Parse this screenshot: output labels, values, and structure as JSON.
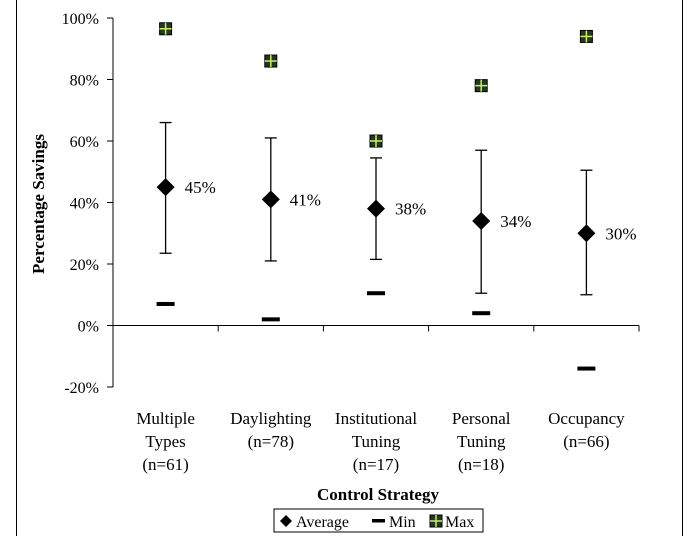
{
  "chart_data": {
    "type": "scatter",
    "xlabel": "Control Strategy",
    "ylabel": "Percentage Savings",
    "ylim": [
      -20,
      100
    ],
    "yticks": [
      -20,
      0,
      20,
      40,
      60,
      80,
      100
    ],
    "grid": false,
    "legend_position": "bottom",
    "categories": [
      {
        "lines": [
          "Multiple",
          "Types",
          "(n=61)"
        ]
      },
      {
        "lines": [
          "Daylighting",
          "(n=78)"
        ]
      },
      {
        "lines": [
          "Institutional",
          "Tuning",
          "(n=17)"
        ]
      },
      {
        "lines": [
          "Personal",
          "Tuning",
          "(n=18)"
        ]
      },
      {
        "lines": [
          "Occupancy",
          "(n=66)"
        ]
      }
    ],
    "series": [
      {
        "name": "Average",
        "marker": "diamond",
        "values": [
          45,
          41,
          38,
          34,
          30
        ],
        "labels": [
          "45%",
          "41%",
          "38%",
          "34%",
          "30%"
        ]
      },
      {
        "name": "Min",
        "marker": "dash",
        "values": [
          7,
          2,
          10.5,
          4,
          -14
        ]
      },
      {
        "name": "Max",
        "marker": "square",
        "values": [
          96.5,
          86,
          60,
          78,
          94
        ]
      }
    ],
    "error_bars": {
      "low": [
        23.5,
        21,
        21.5,
        10.5,
        10
      ],
      "high": [
        66,
        61,
        54.5,
        57,
        50.5
      ]
    },
    "colors": {
      "marker": "#000000",
      "max_fill": "#1f3a1f",
      "max_cross": "#d4e86a"
    }
  }
}
